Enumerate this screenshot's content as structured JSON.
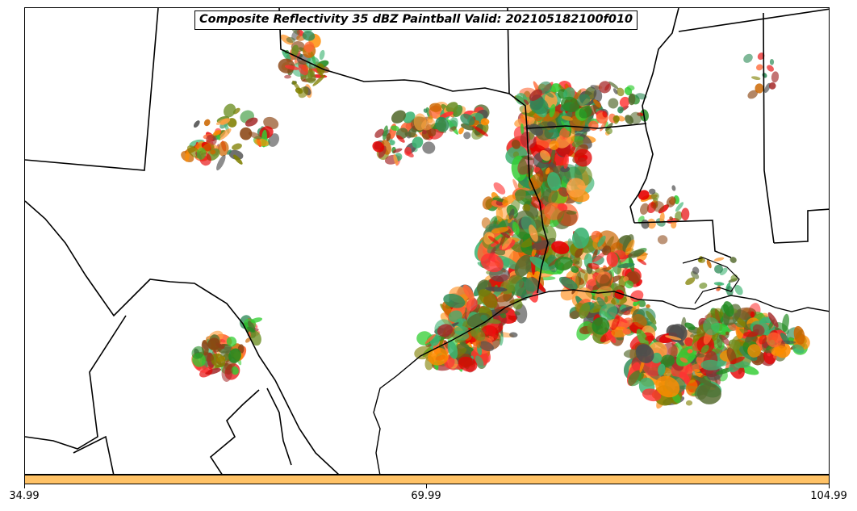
{
  "title": "Composite Reflectivity 35 dBZ Paintball Valid: 202105182100f010",
  "colors": {
    "colorbar": "#ffc266",
    "members": [
      "#e60000",
      "#ff3333",
      "#ff6633",
      "#ff8c00",
      "#ffa040",
      "#cc6600",
      "#3cb371",
      "#32cd32",
      "#228b22",
      "#6b8e23",
      "#556b2f",
      "#8b4513",
      "#a52a2a",
      "#4d4d4d",
      "#808000",
      "#2e8b57"
    ]
  },
  "colorbar_ticks": [
    "34.99",
    "69.99",
    "104.99"
  ],
  "map": {
    "features": [
      "state-borders",
      "coastline",
      "international-border"
    ],
    "precip_regions": [
      "north-texas-panhandle",
      "east-texas-louisiana-band",
      "southeast-texas-coast",
      "gulf-of-mexico",
      "west-texas-cluster",
      "north-central-texas"
    ]
  }
}
